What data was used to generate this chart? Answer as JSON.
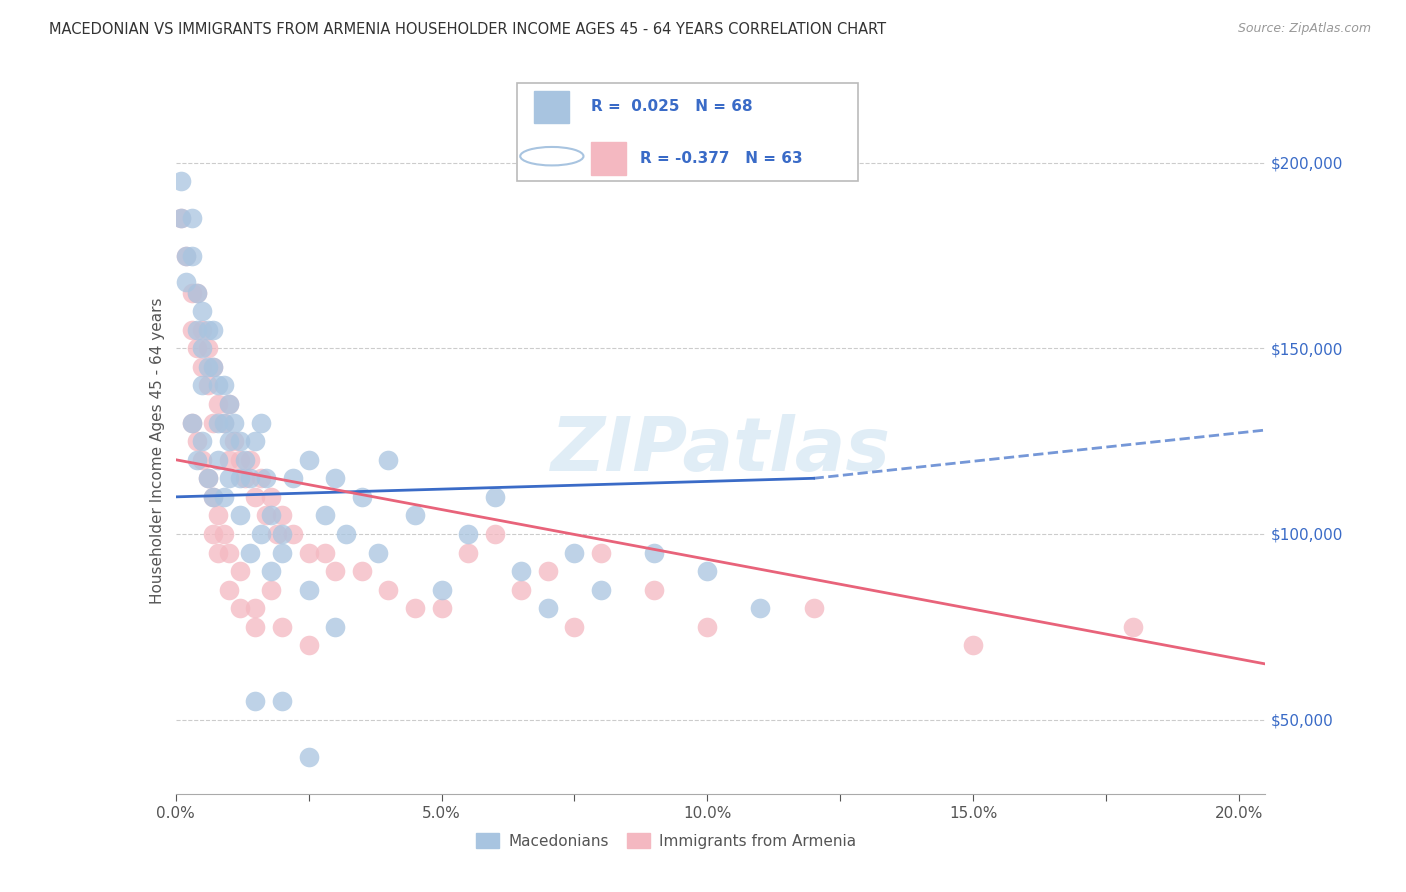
{
  "title": "MACEDONIAN VS IMMIGRANTS FROM ARMENIA HOUSEHOLDER INCOME AGES 45 - 64 YEARS CORRELATION CHART",
  "source": "Source: ZipAtlas.com",
  "ylabel": "Householder Income Ages 45 - 64 years",
  "right_yticks": [
    "$50,000",
    "$100,000",
    "$150,000",
    "$200,000"
  ],
  "right_ytick_vals": [
    50000,
    100000,
    150000,
    200000
  ],
  "bottom_label1": "Macedonians",
  "bottom_label2": "Immigrants from Armenia",
  "macedonian_color": "#a8c4e0",
  "armenia_color": "#f4b8c1",
  "blue_line_color": "#3a6bc7",
  "pink_line_color": "#e8637a",
  "legend_box_blue": "#a8c4e0",
  "legend_box_pink": "#f4b8c1",
  "legend_text_color": "#3a6bc7",
  "watermark": "ZIPatlas",
  "macedonian_scatter_x": [
    0.001,
    0.001,
    0.002,
    0.002,
    0.003,
    0.003,
    0.004,
    0.004,
    0.005,
    0.005,
    0.005,
    0.006,
    0.006,
    0.007,
    0.007,
    0.008,
    0.008,
    0.009,
    0.009,
    0.01,
    0.01,
    0.011,
    0.012,
    0.012,
    0.013,
    0.014,
    0.015,
    0.016,
    0.017,
    0.018,
    0.02,
    0.022,
    0.025,
    0.028,
    0.03,
    0.032,
    0.035,
    0.038,
    0.04,
    0.045,
    0.05,
    0.055,
    0.06,
    0.065,
    0.07,
    0.075,
    0.08,
    0.09,
    0.1,
    0.11,
    0.003,
    0.004,
    0.005,
    0.006,
    0.007,
    0.008,
    0.009,
    0.01,
    0.012,
    0.014,
    0.016,
    0.018,
    0.02,
    0.025,
    0.03,
    0.015,
    0.02,
    0.025
  ],
  "macedonian_scatter_y": [
    195000,
    185000,
    175000,
    168000,
    185000,
    175000,
    165000,
    155000,
    160000,
    150000,
    140000,
    155000,
    145000,
    155000,
    145000,
    140000,
    130000,
    140000,
    130000,
    135000,
    125000,
    130000,
    125000,
    115000,
    120000,
    115000,
    125000,
    130000,
    115000,
    105000,
    100000,
    115000,
    120000,
    105000,
    115000,
    100000,
    110000,
    95000,
    120000,
    105000,
    85000,
    100000,
    110000,
    90000,
    80000,
    95000,
    85000,
    95000,
    90000,
    80000,
    130000,
    120000,
    125000,
    115000,
    110000,
    120000,
    110000,
    115000,
    105000,
    95000,
    100000,
    90000,
    95000,
    85000,
    75000,
    55000,
    55000,
    40000
  ],
  "armenia_scatter_x": [
    0.001,
    0.002,
    0.003,
    0.003,
    0.004,
    0.004,
    0.005,
    0.005,
    0.006,
    0.006,
    0.007,
    0.007,
    0.008,
    0.009,
    0.01,
    0.01,
    0.011,
    0.012,
    0.013,
    0.014,
    0.015,
    0.016,
    0.017,
    0.018,
    0.019,
    0.02,
    0.022,
    0.025,
    0.028,
    0.03,
    0.035,
    0.04,
    0.045,
    0.05,
    0.055,
    0.06,
    0.065,
    0.07,
    0.075,
    0.08,
    0.09,
    0.1,
    0.12,
    0.15,
    0.18,
    0.003,
    0.004,
    0.005,
    0.006,
    0.007,
    0.008,
    0.009,
    0.01,
    0.012,
    0.015,
    0.018,
    0.02,
    0.025,
    0.007,
    0.008,
    0.01,
    0.012,
    0.015
  ],
  "armenia_scatter_y": [
    185000,
    175000,
    165000,
    155000,
    165000,
    150000,
    155000,
    145000,
    150000,
    140000,
    145000,
    130000,
    135000,
    130000,
    135000,
    120000,
    125000,
    120000,
    115000,
    120000,
    110000,
    115000,
    105000,
    110000,
    100000,
    105000,
    100000,
    95000,
    95000,
    90000,
    90000,
    85000,
    80000,
    80000,
    95000,
    100000,
    85000,
    90000,
    75000,
    95000,
    85000,
    75000,
    80000,
    70000,
    75000,
    130000,
    125000,
    120000,
    115000,
    110000,
    105000,
    100000,
    95000,
    90000,
    80000,
    85000,
    75000,
    70000,
    100000,
    95000,
    85000,
    80000,
    75000
  ],
  "xlim": [
    0.0,
    0.205
  ],
  "ylim": [
    30000,
    215000
  ],
  "blue_trend_x": [
    0.0,
    0.12,
    0.205
  ],
  "blue_trend_y": [
    110000,
    115000,
    128000
  ],
  "blue_trend_solid_end": 0.12,
  "pink_trend_x": [
    0.0,
    0.205
  ],
  "pink_trend_y": [
    120000,
    65000
  ],
  "xtick_positions": [
    0.0,
    0.025,
    0.05,
    0.075,
    0.1,
    0.125,
    0.15,
    0.175,
    0.2
  ],
  "xtick_labels": [
    "0.0%",
    "",
    "5.0%",
    "",
    "10.0%",
    "",
    "15.0%",
    "",
    "20.0%"
  ]
}
